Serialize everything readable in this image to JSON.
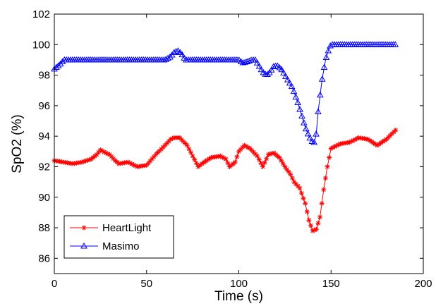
{
  "chart_data": {
    "type": "line",
    "title": "",
    "xlabel": "Time (s)",
    "ylabel": "SpO2 (%)",
    "xlim": [
      0,
      200
    ],
    "ylim": [
      85,
      102
    ],
    "xticks": [
      "0",
      "50",
      "100",
      "150",
      "200"
    ],
    "yticks": [
      "86",
      "88",
      "90",
      "92",
      "94",
      "96",
      "98",
      "100",
      "102"
    ],
    "grid": false,
    "legend_position": "bottom-left",
    "series": [
      {
        "name": "HeartLight",
        "color": "#ff0000",
        "marker": "star",
        "x": [
          0,
          5,
          10,
          15,
          20,
          23,
          25,
          28,
          30,
          33,
          35,
          40,
          45,
          50,
          55,
          60,
          63,
          65,
          68,
          72,
          75,
          78,
          80,
          85,
          90,
          93,
          95,
          98,
          100,
          103,
          106,
          110,
          113,
          116,
          119,
          122,
          125,
          128,
          130,
          133,
          136,
          138,
          140,
          142,
          144,
          146,
          148,
          150,
          155,
          160,
          165,
          170,
          175,
          180,
          185
        ],
        "y": [
          92.4,
          92.3,
          92.2,
          92.3,
          92.5,
          92.8,
          93.1,
          92.9,
          92.8,
          92.4,
          92.2,
          92.3,
          92.0,
          92.1,
          92.8,
          93.4,
          93.8,
          93.9,
          93.9,
          93.4,
          92.7,
          92.0,
          92.2,
          92.6,
          92.7,
          92.5,
          92.0,
          92.3,
          93.0,
          93.4,
          93.2,
          92.7,
          92.0,
          92.8,
          92.9,
          92.6,
          92.0,
          91.5,
          91.0,
          90.6,
          89.6,
          88.5,
          87.8,
          87.9,
          88.7,
          90.5,
          92.0,
          93.2,
          93.5,
          93.6,
          93.9,
          93.8,
          93.4,
          93.8,
          94.4
        ]
      },
      {
        "name": "Masimo",
        "color": "#0000ff",
        "marker": "triangle",
        "x": [
          0,
          2,
          4,
          5,
          10,
          20,
          30,
          40,
          50,
          60,
          63,
          65,
          67,
          69,
          71,
          75,
          80,
          90,
          100,
          102,
          105,
          107,
          109,
          111,
          113,
          115,
          117,
          119,
          121,
          123,
          126,
          129,
          132,
          134,
          136,
          138,
          140,
          141,
          142,
          143,
          145,
          147,
          149,
          150,
          160,
          170,
          180,
          185
        ],
        "y": [
          98.4,
          98.6,
          98.8,
          99.0,
          99.0,
          99.0,
          99.0,
          99.0,
          99.0,
          99.0,
          99.2,
          99.5,
          99.6,
          99.4,
          99.0,
          99.0,
          99.0,
          99.0,
          99.0,
          98.8,
          98.9,
          99.0,
          99.0,
          98.6,
          98.2,
          98.0,
          98.2,
          98.6,
          98.6,
          98.4,
          97.8,
          97.2,
          96.2,
          95.4,
          94.6,
          94.0,
          93.6,
          93.6,
          94.2,
          95.6,
          97.6,
          99.0,
          99.8,
          100.0,
          100.0,
          100.0,
          100.0,
          100.0
        ]
      }
    ]
  }
}
